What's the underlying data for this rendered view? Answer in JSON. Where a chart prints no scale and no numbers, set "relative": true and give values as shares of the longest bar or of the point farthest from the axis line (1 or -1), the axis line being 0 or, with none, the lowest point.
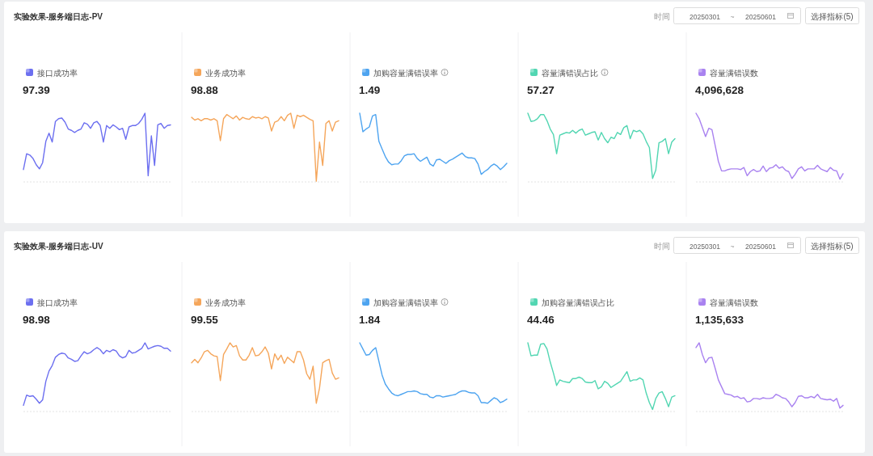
{
  "chart_data": [
    {
      "type": "other",
      "title": "实验效果-服务端日志-PV",
      "annotations": [
        "时间",
        "20250301",
        "~",
        "20250601",
        "选择指标(5)"
      ]
    },
    {
      "type": "line",
      "title": "接口成功率",
      "subtitle": "97.39",
      "relative": true,
      "color": "#6c6ff0",
      "categories": [
        null,
        null,
        null,
        null,
        null,
        null,
        null,
        null,
        null,
        null,
        null,
        null,
        null,
        null,
        null,
        null,
        null,
        null,
        null,
        null,
        null,
        null,
        null,
        null,
        null,
        null,
        null,
        null,
        null,
        null,
        null,
        null,
        null,
        null,
        null,
        null,
        null,
        null,
        null,
        null,
        null,
        null,
        null,
        null,
        null,
        null,
        null
      ],
      "values": [
        0.18,
        0.41,
        0.39,
        0.34,
        0.25,
        0.19,
        0.28,
        0.59,
        0.71,
        0.58,
        0.88,
        0.92,
        0.93,
        0.87,
        0.77,
        0.75,
        0.72,
        0.75,
        0.77,
        0.86,
        0.84,
        0.78,
        0.86,
        0.88,
        0.82,
        0.58,
        0.82,
        0.78,
        0.83,
        0.8,
        0.76,
        0.78,
        0.62,
        0.8,
        0.82,
        0.82,
        0.85,
        0.91,
        1,
        0.09,
        0.67,
        0.24,
        0.83,
        0.85,
        0.78,
        0.82,
        0.83
      ]
    },
    {
      "type": "line",
      "title": "业务成功率",
      "subtitle": "98.88",
      "relative": true,
      "color": "#f5a65b",
      "categories": [
        null,
        null,
        null,
        null,
        null,
        null,
        null,
        null,
        null,
        null,
        null,
        null,
        null,
        null,
        null,
        null,
        null,
        null,
        null,
        null,
        null,
        null,
        null,
        null,
        null,
        null,
        null,
        null,
        null,
        null,
        null,
        null,
        null,
        null,
        null,
        null,
        null,
        null,
        null,
        null,
        null,
        null,
        null,
        null,
        null,
        null,
        null
      ],
      "values": [
        0.94,
        0.9,
        0.92,
        0.89,
        0.92,
        0.92,
        0.9,
        0.92,
        0.89,
        0.6,
        0.92,
        0.98,
        0.95,
        0.92,
        0.96,
        0.9,
        0.94,
        0.92,
        0.91,
        0.95,
        0.93,
        0.94,
        0.92,
        0.95,
        0.93,
        0.74,
        0.87,
        0.89,
        0.95,
        0.89,
        0.97,
        1,
        0.78,
        0.97,
        0.95,
        0.97,
        0.94,
        0.91,
        0.89,
        0.01,
        0.58,
        0.24,
        0.85,
        0.89,
        0.74,
        0.87,
        0.89
      ]
    },
    {
      "type": "line",
      "title": "加购容量满错误率",
      "subtitle": "1.49",
      "relative": true,
      "color": "#4ea4f0",
      "categories": [
        null,
        null,
        null,
        null,
        null,
        null,
        null,
        null,
        null,
        null,
        null,
        null,
        null,
        null,
        null,
        null,
        null,
        null,
        null,
        null,
        null,
        null,
        null,
        null,
        null,
        null,
        null,
        null,
        null,
        null,
        null,
        null,
        null,
        null,
        null,
        null,
        null,
        null,
        null,
        null,
        null,
        null,
        null,
        null,
        null,
        null,
        null
      ],
      "values": [
        1,
        0.73,
        0.77,
        0.8,
        0.96,
        0.98,
        0.59,
        0.48,
        0.37,
        0.29,
        0.25,
        0.26,
        0.26,
        0.31,
        0.38,
        0.4,
        0.4,
        0.41,
        0.34,
        0.3,
        0.33,
        0.36,
        0.26,
        0.23,
        0.32,
        0.33,
        0.3,
        0.27,
        0.31,
        0.33,
        0.36,
        0.39,
        0.42,
        0.37,
        0.35,
        0.35,
        0.34,
        0.26,
        0.11,
        0.15,
        0.18,
        0.23,
        0.26,
        0.23,
        0.18,
        0.22,
        0.27
      ]
    },
    {
      "type": "line",
      "title": "容量满错误占比",
      "subtitle": "57.27",
      "relative": true,
      "color": "#52d6b2",
      "categories": [
        null,
        null,
        null,
        null,
        null,
        null,
        null,
        null,
        null,
        null,
        null,
        null,
        null,
        null,
        null,
        null,
        null,
        null,
        null,
        null,
        null,
        null,
        null,
        null,
        null,
        null,
        null,
        null,
        null,
        null,
        null,
        null,
        null,
        null,
        null,
        null,
        null,
        null,
        null,
        null,
        null,
        null,
        null,
        null,
        null,
        null,
        null
      ],
      "values": [
        1,
        0.88,
        0.89,
        0.92,
        0.98,
        0.98,
        0.89,
        0.77,
        0.69,
        0.41,
        0.68,
        0.7,
        0.72,
        0.71,
        0.75,
        0.71,
        0.75,
        0.77,
        0.68,
        0.7,
        0.72,
        0.73,
        0.61,
        0.72,
        0.63,
        0.57,
        0.65,
        0.63,
        0.72,
        0.69,
        0.79,
        0.82,
        0.63,
        0.75,
        0.73,
        0.75,
        0.7,
        0.59,
        0.5,
        0.05,
        0.17,
        0.57,
        0.59,
        0.63,
        0.41,
        0.58,
        0.63
      ]
    },
    {
      "type": "line",
      "title": "容量满错误数",
      "subtitle": "4,096,628",
      "relative": true,
      "color": "#a982f0",
      "categories": [
        null,
        null,
        null,
        null,
        null,
        null,
        null,
        null,
        null,
        null,
        null,
        null,
        null,
        null,
        null,
        null,
        null,
        null,
        null,
        null,
        null,
        null,
        null,
        null,
        null,
        null,
        null,
        null,
        null,
        null,
        null,
        null,
        null,
        null,
        null,
        null,
        null,
        null,
        null,
        null,
        null,
        null,
        null,
        null,
        null,
        null,
        null
      ],
      "values": [
        1,
        0.92,
        0.79,
        0.66,
        0.78,
        0.76,
        0.53,
        0.3,
        0.16,
        0.16,
        0.18,
        0.19,
        0.19,
        0.19,
        0.18,
        0.21,
        0.09,
        0.15,
        0.18,
        0.15,
        0.16,
        0.23,
        0.15,
        0.2,
        0.21,
        0.25,
        0.2,
        0.22,
        0.17,
        0.15,
        0.05,
        0.11,
        0.19,
        0.22,
        0.16,
        0.19,
        0.19,
        0.19,
        0.24,
        0.19,
        0.17,
        0.15,
        0.21,
        0.17,
        0.16,
        0.04,
        0.12
      ]
    },
    {
      "type": "other",
      "title": "实验效果-服务端日志-UV",
      "annotations": [
        "时间",
        "20250301",
        "~",
        "20250601",
        "选择指标(5)"
      ]
    },
    {
      "type": "line",
      "title": "接口成功率",
      "subtitle": "98.98",
      "relative": true,
      "color": "#6c6ff0",
      "categories": [
        null,
        null,
        null,
        null,
        null,
        null,
        null,
        null,
        null,
        null,
        null,
        null,
        null,
        null,
        null,
        null,
        null,
        null,
        null,
        null,
        null,
        null,
        null,
        null,
        null,
        null,
        null,
        null,
        null,
        null,
        null,
        null,
        null,
        null,
        null,
        null,
        null,
        null,
        null,
        null,
        null,
        null,
        null,
        null,
        null,
        null,
        null
      ],
      "values": [
        0.09,
        0.24,
        0.22,
        0.23,
        0.18,
        0.12,
        0.17,
        0.44,
        0.59,
        0.67,
        0.79,
        0.83,
        0.85,
        0.84,
        0.78,
        0.76,
        0.73,
        0.74,
        0.81,
        0.87,
        0.84,
        0.86,
        0.9,
        0.93,
        0.9,
        0.84,
        0.89,
        0.87,
        0.9,
        0.88,
        0.81,
        0.78,
        0.8,
        0.89,
        0.85,
        0.86,
        0.89,
        0.92,
        1,
        0.91,
        0.93,
        0.95,
        0.96,
        0.95,
        0.92,
        0.92,
        0.88
      ]
    },
    {
      "type": "line",
      "title": "业务成功率",
      "subtitle": "99.55",
      "relative": true,
      "color": "#f5a65b",
      "categories": [
        null,
        null,
        null,
        null,
        null,
        null,
        null,
        null,
        null,
        null,
        null,
        null,
        null,
        null,
        null,
        null,
        null,
        null,
        null,
        null,
        null,
        null,
        null,
        null,
        null,
        null,
        null,
        null,
        null,
        null,
        null,
        null,
        null,
        null,
        null,
        null,
        null,
        null,
        null,
        null,
        null,
        null,
        null,
        null,
        null,
        null,
        null
      ],
      "values": [
        0.71,
        0.76,
        0.71,
        0.78,
        0.87,
        0.89,
        0.84,
        0.81,
        0.8,
        0.45,
        0.83,
        0.91,
        1,
        0.94,
        0.96,
        0.81,
        0.75,
        0.75,
        0.82,
        0.93,
        0.81,
        0.82,
        0.87,
        0.94,
        0.85,
        0.62,
        0.84,
        0.75,
        0.82,
        0.7,
        0.79,
        0.75,
        0.71,
        0.87,
        0.87,
        0.75,
        0.55,
        0.47,
        0.66,
        0.12,
        0.34,
        0.71,
        0.74,
        0.76,
        0.56,
        0.47,
        0.49
      ]
    },
    {
      "type": "line",
      "title": "加购容量满错误率",
      "subtitle": "1.84",
      "relative": true,
      "color": "#4ea4f0",
      "categories": [
        null,
        null,
        null,
        null,
        null,
        null,
        null,
        null,
        null,
        null,
        null,
        null,
        null,
        null,
        null,
        null,
        null,
        null,
        null,
        null,
        null,
        null,
        null,
        null,
        null,
        null,
        null,
        null,
        null,
        null,
        null,
        null,
        null,
        null,
        null,
        null,
        null,
        null,
        null,
        null,
        null,
        null,
        null,
        null,
        null,
        null,
        null
      ],
      "values": [
        1,
        0.91,
        0.82,
        0.83,
        0.89,
        0.93,
        0.73,
        0.53,
        0.4,
        0.33,
        0.27,
        0.24,
        0.23,
        0.25,
        0.27,
        0.29,
        0.29,
        0.3,
        0.29,
        0.26,
        0.25,
        0.25,
        0.21,
        0.2,
        0.23,
        0.23,
        0.21,
        0.22,
        0.23,
        0.24,
        0.25,
        0.28,
        0.3,
        0.3,
        0.28,
        0.27,
        0.27,
        0.23,
        0.13,
        0.13,
        0.12,
        0.16,
        0.2,
        0.18,
        0.13,
        0.15,
        0.18
      ]
    },
    {
      "type": "line",
      "title": "加购容量满错误占比",
      "subtitle": "44.46",
      "relative": true,
      "color": "#52d6b2",
      "categories": [
        null,
        null,
        null,
        null,
        null,
        null,
        null,
        null,
        null,
        null,
        null,
        null,
        null,
        null,
        null,
        null,
        null,
        null,
        null,
        null,
        null,
        null,
        null,
        null,
        null,
        null,
        null,
        null,
        null,
        null,
        null,
        null,
        null,
        null,
        null,
        null,
        null,
        null,
        null,
        null,
        null,
        null,
        null,
        null,
        null,
        null,
        null
      ],
      "values": [
        1,
        0.81,
        0.82,
        0.82,
        0.98,
        0.99,
        0.91,
        0.72,
        0.56,
        0.38,
        0.46,
        0.44,
        0.43,
        0.42,
        0.48,
        0.48,
        0.5,
        0.48,
        0.43,
        0.42,
        0.42,
        0.45,
        0.33,
        0.36,
        0.44,
        0.41,
        0.35,
        0.38,
        0.41,
        0.44,
        0.51,
        0.58,
        0.44,
        0.46,
        0.46,
        0.49,
        0.46,
        0.27,
        0.13,
        0.03,
        0.19,
        0.27,
        0.29,
        0.19,
        0.07,
        0.21,
        0.23
      ]
    },
    {
      "type": "line",
      "title": "容量满错误数",
      "subtitle": "1,135,633",
      "relative": true,
      "color": "#a982f0",
      "categories": [
        null,
        null,
        null,
        null,
        null,
        null,
        null,
        null,
        null,
        null,
        null,
        null,
        null,
        null,
        null,
        null,
        null,
        null,
        null,
        null,
        null,
        null,
        null,
        null,
        null,
        null,
        null,
        null,
        null,
        null,
        null,
        null,
        null,
        null,
        null,
        null,
        null,
        null,
        null,
        null,
        null,
        null,
        null,
        null,
        null,
        null,
        null
      ],
      "values": [
        0.93,
        1,
        0.83,
        0.71,
        0.78,
        0.79,
        0.63,
        0.46,
        0.36,
        0.26,
        0.25,
        0.24,
        0.21,
        0.22,
        0.19,
        0.2,
        0.14,
        0.15,
        0.19,
        0.19,
        0.18,
        0.2,
        0.19,
        0.19,
        0.2,
        0.25,
        0.23,
        0.2,
        0.19,
        0.14,
        0.07,
        0.13,
        0.22,
        0.23,
        0.2,
        0.2,
        0.22,
        0.2,
        0.25,
        0.19,
        0.18,
        0.17,
        0.18,
        0.15,
        0.19,
        0.05,
        0.09
      ]
    }
  ]
}
